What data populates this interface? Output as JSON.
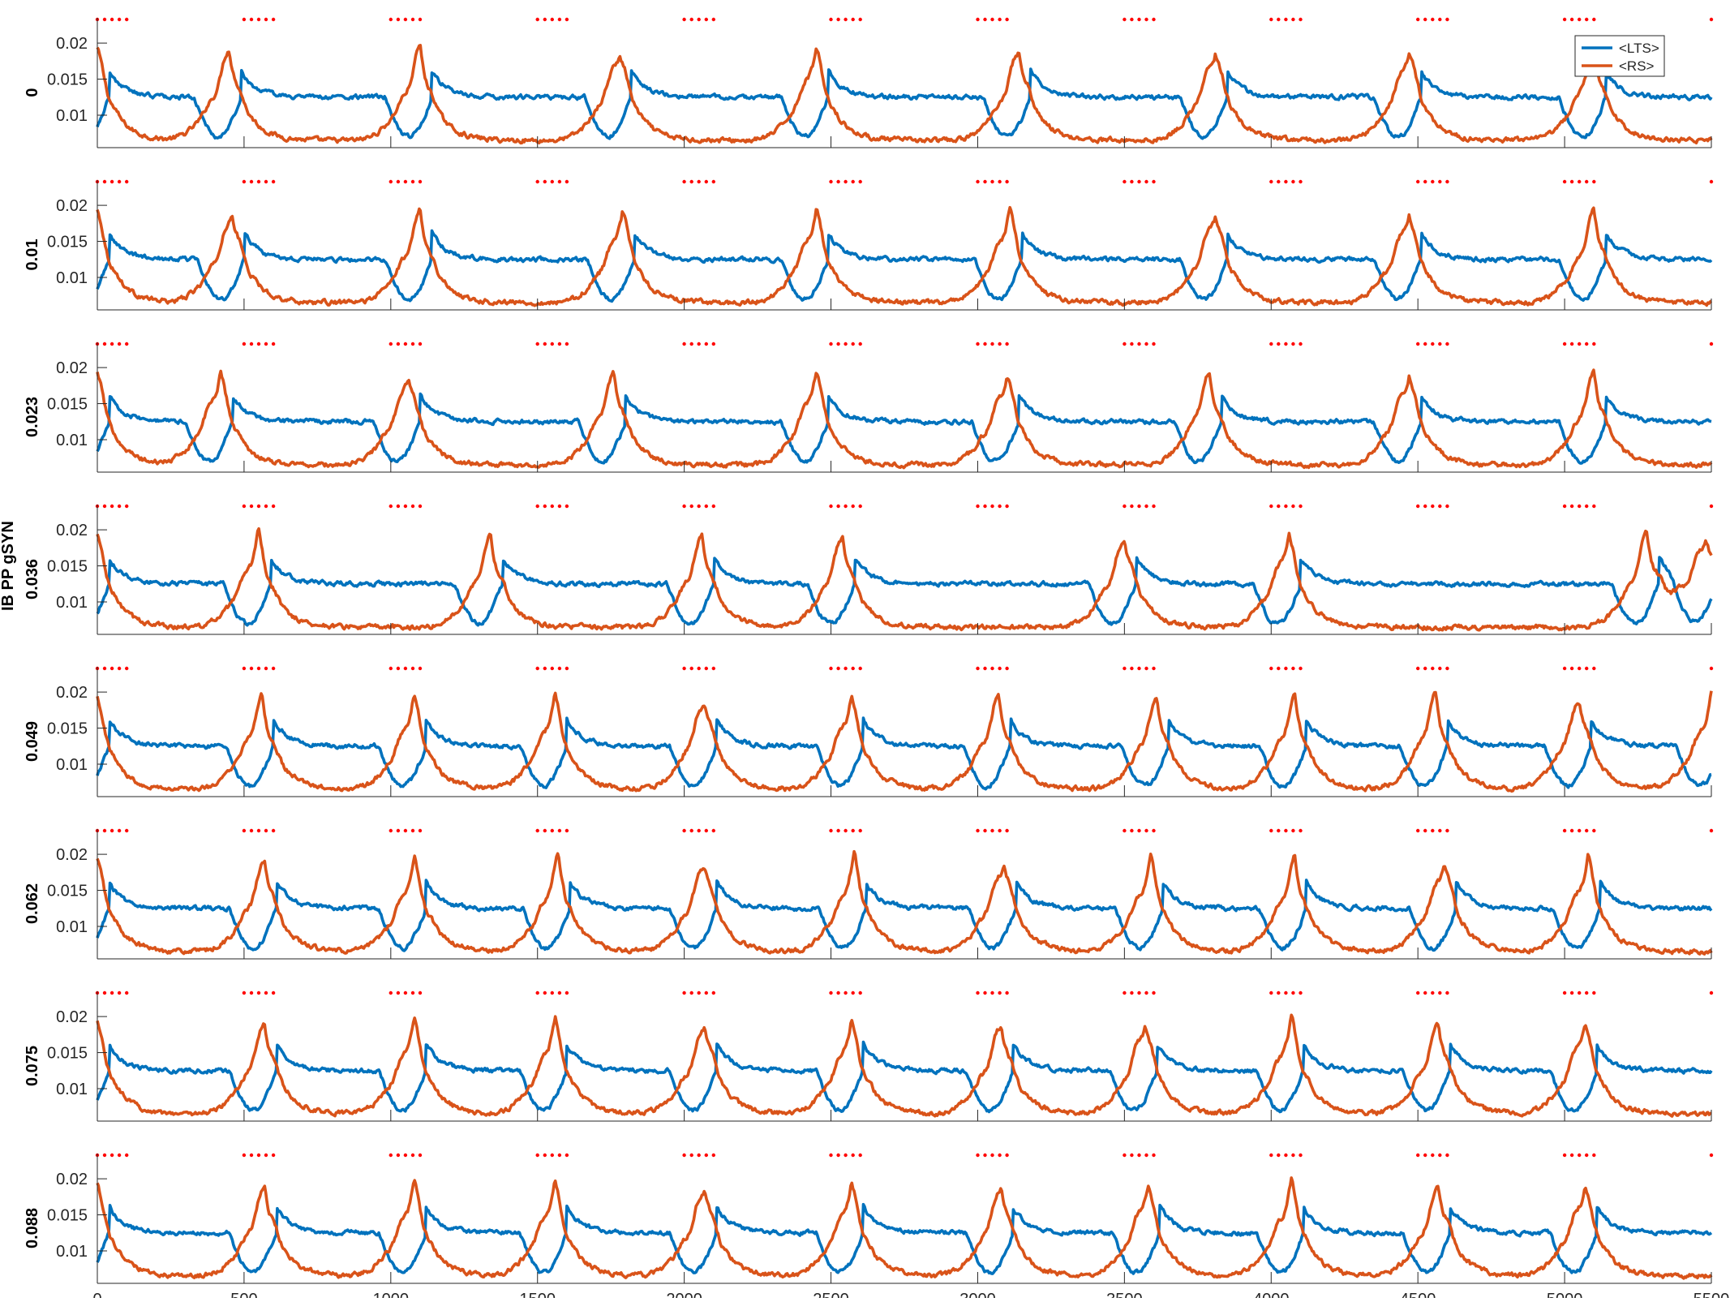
{
  "chart_data": {
    "type": "line",
    "figure_ylabel": "IB PP gSYN",
    "xlim": [
      0,
      5500
    ],
    "x_ticks": [
      0,
      500,
      1000,
      1500,
      2000,
      2500,
      3000,
      3500,
      4000,
      4500,
      5000,
      5500
    ],
    "ylim": [
      0.0055,
      0.0235
    ],
    "y_ticks": [
      0.01,
      0.015,
      0.02
    ],
    "y_tick_labels": [
      "0.01",
      "0.015",
      "0.02"
    ],
    "grid": false,
    "legend": {
      "placement": "top-right",
      "entries": [
        "<LTS>",
        "<RS>"
      ]
    },
    "colors": {
      "LTS": "#0072BD",
      "RS": "#D95319",
      "pulse": "#FF0000"
    },
    "pulse_markers": {
      "per_train": 5,
      "spacing": 25,
      "train_starts": [
        0,
        500,
        1000,
        1500,
        2000,
        2500,
        3000,
        3500,
        4000,
        4500,
        5000,
        5500
      ]
    },
    "series_shape": {
      "baseline_LTS": 0.0125,
      "baseline_RS_min": 0.0065,
      "peak_RS": 0.02,
      "peak_LTS": 0.016
    },
    "panels": [
      {
        "label": "0",
        "event_times": [
          0,
          450,
          1100,
          1780,
          2450,
          3140,
          3810,
          4470,
          5100
        ]
      },
      {
        "label": "0.01",
        "event_times": [
          0,
          460,
          1100,
          1790,
          2450,
          3110,
          3810,
          4470,
          5100
        ]
      },
      {
        "label": "0.023",
        "event_times": [
          0,
          420,
          1060,
          1760,
          2450,
          3100,
          3790,
          4470,
          5100
        ]
      },
      {
        "label": "0.036",
        "event_times": [
          0,
          550,
          1340,
          2060,
          2540,
          3500,
          4060,
          5280,
          5480
        ]
      },
      {
        "label": "0.049",
        "event_times": [
          0,
          560,
          1080,
          1560,
          2070,
          2570,
          3070,
          3610,
          4080,
          4560,
          5050,
          5500
        ]
      },
      {
        "label": "0.062",
        "event_times": [
          0,
          570,
          1080,
          1570,
          2070,
          2580,
          3090,
          3590,
          4080,
          4590,
          5080
        ]
      },
      {
        "label": "0.075",
        "event_times": [
          0,
          570,
          1080,
          1560,
          2070,
          2570,
          3080,
          3570,
          4070,
          4570,
          5070
        ]
      },
      {
        "label": "0.088",
        "event_times": [
          0,
          570,
          1080,
          1560,
          2070,
          2570,
          3080,
          3580,
          4070,
          4570,
          5070
        ]
      }
    ]
  }
}
